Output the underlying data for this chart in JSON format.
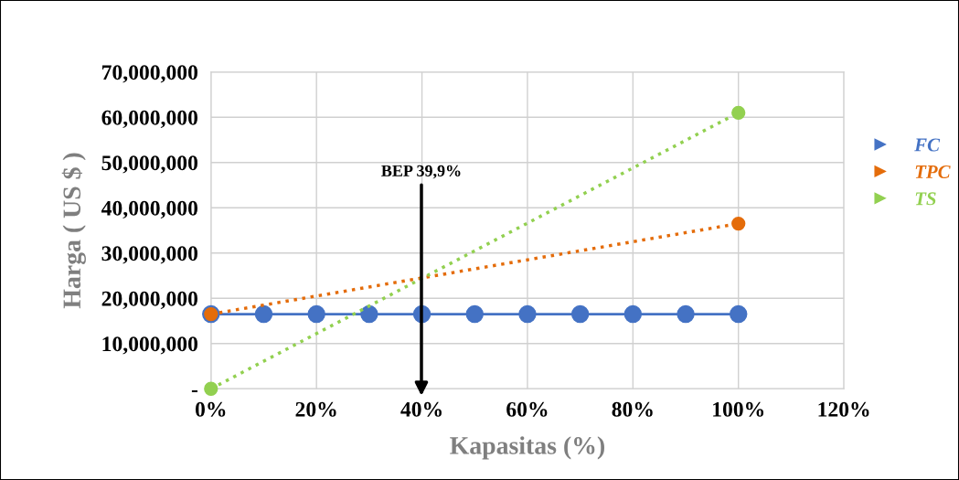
{
  "chart_data": {
    "type": "line",
    "xlabel": "Kapasitas (%)",
    "ylabel": "Harga ( US $ )",
    "xlim": [
      0,
      120
    ],
    "xticks": [
      {
        "value": 0,
        "label": "0%"
      },
      {
        "value": 20,
        "label": "20%"
      },
      {
        "value": 40,
        "label": "40%"
      },
      {
        "value": 60,
        "label": "60%"
      },
      {
        "value": 80,
        "label": "80%"
      },
      {
        "value": 100,
        "label": "100%"
      },
      {
        "value": 120,
        "label": "120%"
      }
    ],
    "ylim": [
      0,
      70000000
    ],
    "yticks": [
      {
        "value": 0,
        "label": "-"
      },
      {
        "value": 10000000,
        "label": "10,000,000"
      },
      {
        "value": 20000000,
        "label": "20,000,000"
      },
      {
        "value": 30000000,
        "label": "30,000,000"
      },
      {
        "value": 40000000,
        "label": "40,000,000"
      },
      {
        "value": 50000000,
        "label": "50,000,000"
      },
      {
        "value": 60000000,
        "label": "60,000,000"
      },
      {
        "value": 70000000,
        "label": "70,000,000"
      }
    ],
    "grid": true,
    "legend": "right",
    "marker": "circle",
    "series": [
      {
        "name": "FC",
        "color": "#4472c4",
        "line_style": "solid",
        "x": [
          0,
          10,
          20,
          30,
          40,
          50,
          60,
          70,
          80,
          90,
          100
        ],
        "values": [
          16500000,
          16500000,
          16500000,
          16500000,
          16500000,
          16500000,
          16500000,
          16500000,
          16500000,
          16500000,
          16500000
        ]
      },
      {
        "name": "TPC",
        "color": "#e46c0a",
        "line_style": "dotted",
        "x": [
          0,
          100
        ],
        "values": [
          16500000,
          36500000
        ]
      },
      {
        "name": "TS",
        "color": "#92d050",
        "line_style": "dotted",
        "x": [
          0,
          100
        ],
        "values": [
          0,
          61000000
        ]
      }
    ],
    "annotations": [
      {
        "text": "BEP 39,9%",
        "x": 39.9,
        "y": 0
      }
    ]
  }
}
